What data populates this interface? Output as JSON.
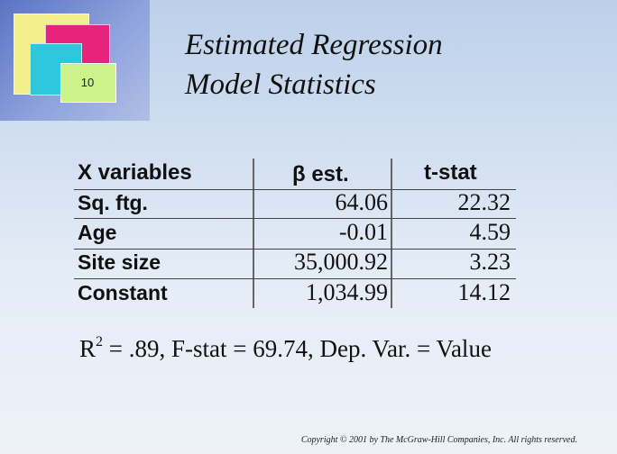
{
  "slide": {
    "number": "10",
    "title_line1": "Estimated Regression",
    "title_line2": "Model Statistics"
  },
  "table": {
    "headers": [
      "X variables",
      "β est.",
      "t-stat"
    ],
    "rows": [
      {
        "variable": "Sq. ftg.",
        "beta": "64.06",
        "tstat": "22.32"
      },
      {
        "variable": "Age",
        "beta": "-0.01",
        "tstat": "4.59"
      },
      {
        "variable": "Site size",
        "beta": "35,000.92",
        "tstat": "3.23"
      },
      {
        "variable": "Constant",
        "beta": "1,034.99",
        "tstat": "14.12"
      }
    ]
  },
  "stats": {
    "r_prefix": "R",
    "r_sup": "2",
    "text": " = .89, F-stat = 69.74, Dep. Var. = Value"
  },
  "copyright": "Copyright © 2001 by The McGraw-Hill Companies, Inc. All rights reserved."
}
